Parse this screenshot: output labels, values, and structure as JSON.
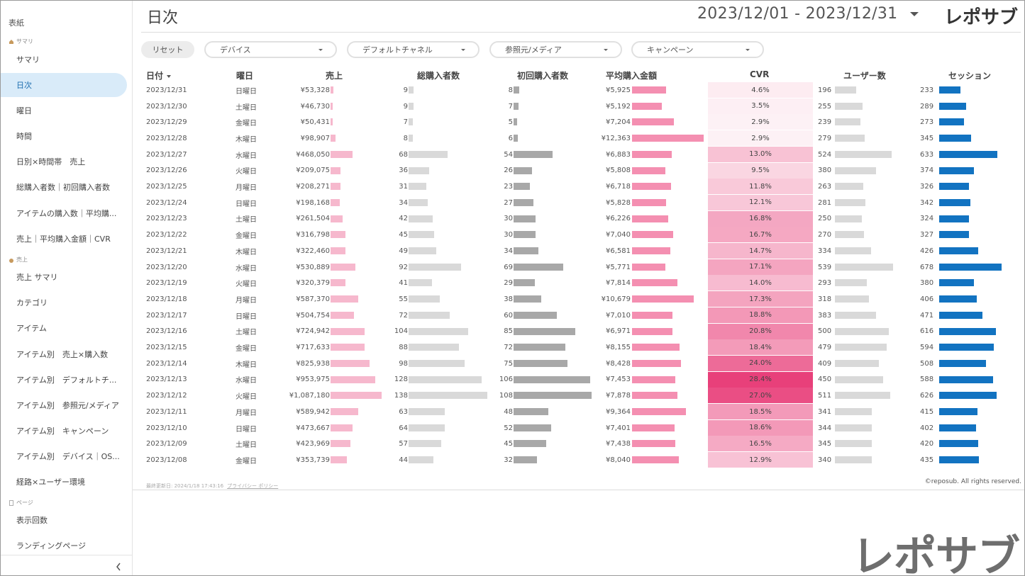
{
  "sidebar": {
    "cover": "表紙",
    "sections": [
      {
        "label": "サマリ",
        "icon": "home-icon"
      },
      {
        "label": "売上",
        "icon": "coin-bag-icon"
      },
      {
        "label": "ページ",
        "icon": "page-icon"
      }
    ],
    "items": [
      {
        "label": "サマリ"
      },
      {
        "label": "日次",
        "active": true
      },
      {
        "label": "曜日"
      },
      {
        "label": "時間"
      },
      {
        "label": "日別×時間帯　売上"
      },
      {
        "label": "総購入者数｜初回購入者数"
      },
      {
        "label": "アイテムの購入数｜平均購..."
      },
      {
        "label": "売上｜平均購入金額｜CVR"
      },
      {
        "label": "売上 サマリ"
      },
      {
        "label": "カテゴリ"
      },
      {
        "label": "アイテム"
      },
      {
        "label": "アイテム別　売上×購入数"
      },
      {
        "label": "アイテム別　デフォルトチ..."
      },
      {
        "label": "アイテム別　参照元/メディア"
      },
      {
        "label": "アイテム別　キャンペーン"
      },
      {
        "label": "アイテム別　デバイス｜OS..."
      },
      {
        "label": "経路×ユーザー環境"
      },
      {
        "label": "表示回数"
      },
      {
        "label": "ランディングページ"
      }
    ],
    "collapse_icon": "chevron-left-icon"
  },
  "header": {
    "title": "日次",
    "date_range": "2023/12/01 - 2023/12/31",
    "logo": "レポサブ"
  },
  "filters": {
    "reset": "リセット",
    "device": "デバイス",
    "channel": "デフォルトチャネル",
    "source": "参照元/メディア",
    "campaign": "キャンペーン"
  },
  "table": {
    "headers": [
      "日付",
      "曜日",
      "売上",
      "総購入者数",
      "初回購入者数",
      "平均購入金額",
      "CVR",
      "ユーザー数",
      "セッション"
    ],
    "sort_icon": "sort-desc-icon",
    "rows": [
      {
        "date": "2023/12/31",
        "dow": "日曜日",
        "sales": "¥53,328",
        "salesN": 53328,
        "buyers": 9,
        "first": 8,
        "avg": "¥5,925",
        "avgN": 5925,
        "cvr": "4.6%",
        "cvrN": 4.6,
        "users": 196,
        "sessions": 233
      },
      {
        "date": "2023/12/30",
        "dow": "土曜日",
        "sales": "¥46,730",
        "salesN": 46730,
        "buyers": 9,
        "first": 7,
        "avg": "¥5,192",
        "avgN": 5192,
        "cvr": "3.5%",
        "cvrN": 3.5,
        "users": 255,
        "sessions": 289
      },
      {
        "date": "2023/12/29",
        "dow": "金曜日",
        "sales": "¥50,431",
        "salesN": 50431,
        "buyers": 7,
        "first": 5,
        "avg": "¥7,204",
        "avgN": 7204,
        "cvr": "2.9%",
        "cvrN": 2.9,
        "users": 239,
        "sessions": 273
      },
      {
        "date": "2023/12/28",
        "dow": "木曜日",
        "sales": "¥98,907",
        "salesN": 98907,
        "buyers": 8,
        "first": 6,
        "avg": "¥12,363",
        "avgN": 12363,
        "cvr": "2.9%",
        "cvrN": 2.9,
        "users": 279,
        "sessions": 345
      },
      {
        "date": "2023/12/27",
        "dow": "水曜日",
        "sales": "¥468,050",
        "salesN": 468050,
        "buyers": 68,
        "first": 54,
        "avg": "¥6,883",
        "avgN": 6883,
        "cvr": "13.0%",
        "cvrN": 13.0,
        "users": 524,
        "sessions": 633
      },
      {
        "date": "2023/12/26",
        "dow": "火曜日",
        "sales": "¥209,075",
        "salesN": 209075,
        "buyers": 36,
        "first": 26,
        "avg": "¥5,808",
        "avgN": 5808,
        "cvr": "9.5%",
        "cvrN": 9.5,
        "users": 380,
        "sessions": 374
      },
      {
        "date": "2023/12/25",
        "dow": "月曜日",
        "sales": "¥208,271",
        "salesN": 208271,
        "buyers": 31,
        "first": 23,
        "avg": "¥6,718",
        "avgN": 6718,
        "cvr": "11.8%",
        "cvrN": 11.8,
        "users": 263,
        "sessions": 326
      },
      {
        "date": "2023/12/24",
        "dow": "日曜日",
        "sales": "¥198,168",
        "salesN": 198168,
        "buyers": 34,
        "first": 27,
        "avg": "¥5,828",
        "avgN": 5828,
        "cvr": "12.1%",
        "cvrN": 12.1,
        "users": 281,
        "sessions": 342
      },
      {
        "date": "2023/12/23",
        "dow": "土曜日",
        "sales": "¥261,504",
        "salesN": 261504,
        "buyers": 42,
        "first": 30,
        "avg": "¥6,226",
        "avgN": 6226,
        "cvr": "16.8%",
        "cvrN": 16.8,
        "users": 250,
        "sessions": 324
      },
      {
        "date": "2023/12/22",
        "dow": "金曜日",
        "sales": "¥316,798",
        "salesN": 316798,
        "buyers": 45,
        "first": 30,
        "avg": "¥7,040",
        "avgN": 7040,
        "cvr": "16.7%",
        "cvrN": 16.7,
        "users": 270,
        "sessions": 327
      },
      {
        "date": "2023/12/21",
        "dow": "木曜日",
        "sales": "¥322,460",
        "salesN": 322460,
        "buyers": 49,
        "first": 34,
        "avg": "¥6,581",
        "avgN": 6581,
        "cvr": "14.7%",
        "cvrN": 14.7,
        "users": 334,
        "sessions": 426
      },
      {
        "date": "2023/12/20",
        "dow": "水曜日",
        "sales": "¥530,889",
        "salesN": 530889,
        "buyers": 92,
        "first": 69,
        "avg": "¥5,771",
        "avgN": 5771,
        "cvr": "17.1%",
        "cvrN": 17.1,
        "users": 539,
        "sessions": 678
      },
      {
        "date": "2023/12/19",
        "dow": "火曜日",
        "sales": "¥320,379",
        "salesN": 320379,
        "buyers": 41,
        "first": 29,
        "avg": "¥7,814",
        "avgN": 7814,
        "cvr": "14.0%",
        "cvrN": 14.0,
        "users": 293,
        "sessions": 380
      },
      {
        "date": "2023/12/18",
        "dow": "月曜日",
        "sales": "¥587,370",
        "salesN": 587370,
        "buyers": 55,
        "first": 38,
        "avg": "¥10,679",
        "avgN": 10679,
        "cvr": "17.3%",
        "cvrN": 17.3,
        "users": 318,
        "sessions": 406
      },
      {
        "date": "2023/12/17",
        "dow": "日曜日",
        "sales": "¥504,754",
        "salesN": 504754,
        "buyers": 72,
        "first": 60,
        "avg": "¥7,010",
        "avgN": 7010,
        "cvr": "18.8%",
        "cvrN": 18.8,
        "users": 383,
        "sessions": 471
      },
      {
        "date": "2023/12/16",
        "dow": "土曜日",
        "sales": "¥724,942",
        "salesN": 724942,
        "buyers": 104,
        "first": 85,
        "avg": "¥6,971",
        "avgN": 6971,
        "cvr": "20.8%",
        "cvrN": 20.8,
        "users": 500,
        "sessions": 616
      },
      {
        "date": "2023/12/15",
        "dow": "金曜日",
        "sales": "¥717,633",
        "salesN": 717633,
        "buyers": 88,
        "first": 72,
        "avg": "¥8,155",
        "avgN": 8155,
        "cvr": "18.4%",
        "cvrN": 18.4,
        "users": 479,
        "sessions": 594
      },
      {
        "date": "2023/12/14",
        "dow": "木曜日",
        "sales": "¥825,938",
        "salesN": 825938,
        "buyers": 98,
        "first": 75,
        "avg": "¥8,428",
        "avgN": 8428,
        "cvr": "24.0%",
        "cvrN": 24.0,
        "users": 409,
        "sessions": 508
      },
      {
        "date": "2023/12/13",
        "dow": "水曜日",
        "sales": "¥953,975",
        "salesN": 953975,
        "buyers": 128,
        "first": 106,
        "avg": "¥7,453",
        "avgN": 7453,
        "cvr": "28.4%",
        "cvrN": 28.4,
        "users": 450,
        "sessions": 588
      },
      {
        "date": "2023/12/12",
        "dow": "火曜日",
        "sales": "¥1,087,180",
        "salesN": 1087180,
        "buyers": 138,
        "first": 108,
        "avg": "¥7,878",
        "avgN": 7878,
        "cvr": "27.0%",
        "cvrN": 27.0,
        "users": 511,
        "sessions": 626
      },
      {
        "date": "2023/12/11",
        "dow": "月曜日",
        "sales": "¥589,942",
        "salesN": 589942,
        "buyers": 63,
        "first": 48,
        "avg": "¥9,364",
        "avgN": 9364,
        "cvr": "18.5%",
        "cvrN": 18.5,
        "users": 341,
        "sessions": 415
      },
      {
        "date": "2023/12/10",
        "dow": "日曜日",
        "sales": "¥473,667",
        "salesN": 473667,
        "buyers": 64,
        "first": 52,
        "avg": "¥7,401",
        "avgN": 7401,
        "cvr": "18.6%",
        "cvrN": 18.6,
        "users": 344,
        "sessions": 402
      },
      {
        "date": "2023/12/09",
        "dow": "土曜日",
        "sales": "¥423,969",
        "salesN": 423969,
        "buyers": 57,
        "first": 45,
        "avg": "¥7,438",
        "avgN": 7438,
        "cvr": "16.5%",
        "cvrN": 16.5,
        "users": 345,
        "sessions": 420
      },
      {
        "date": "2023/12/08",
        "dow": "金曜日",
        "sales": "¥353,739",
        "salesN": 353739,
        "buyers": 44,
        "first": 32,
        "avg": "¥8,040",
        "avgN": 8040,
        "cvr": "12.9%",
        "cvrN": 12.9,
        "users": 340,
        "sessions": 435
      }
    ]
  },
  "colors": {
    "sales_bar": "#f6b8cd",
    "buyers_bar": "#d9d9d9",
    "first_bar": "#a8a8a8",
    "avg_bar": "#f48fb1",
    "users_bar": "#d9d9d9",
    "sessions_bar": "#1273c1",
    "cvr_max": "#e8407a"
  },
  "footer": {
    "updated": "最終更新日: 2024/1/18 17:43:16",
    "privacy": "プライバシー ポリシー",
    "copyright": "©reposub. All rights reserved."
  },
  "brand_big": "レポサブ"
}
